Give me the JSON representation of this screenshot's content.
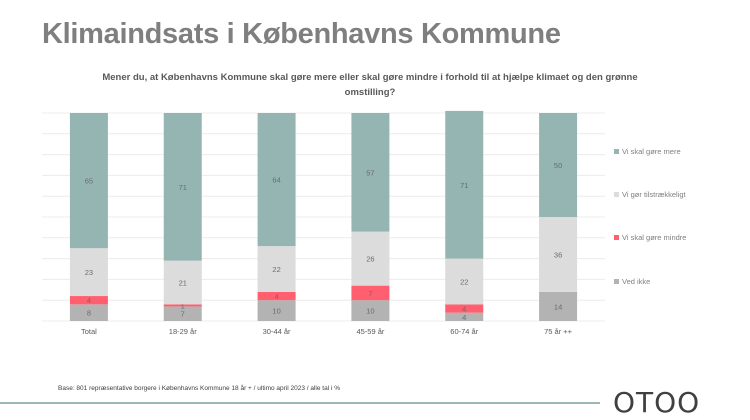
{
  "title": "Klimaindsats i Københavns Kommune",
  "question": "Mener du, at Københavns Kommune skal gøre mere eller skal gøre mindre i forhold til at hjælpe klimaet og den grønne omstilling?",
  "footnote": "Base: 801 repræsentative borgere i Københavns Kommune 18 år + / ultimo april 2023 / alle tal i %",
  "logo": "OTOO",
  "chart_data": {
    "type": "bar",
    "stacked": true,
    "orientation": "vertical",
    "categories": [
      "Total",
      "18-29 år",
      "30-44 år",
      "45-59 år",
      "60-74 år",
      "75 år ++"
    ],
    "ylim": [
      0,
      100
    ],
    "grid": true,
    "legend_position": "right",
    "series": [
      {
        "name": "Ved ikke",
        "color": "#b3b3b3",
        "values": [
          8,
          7,
          10,
          10,
          4,
          14
        ]
      },
      {
        "name": "Vi skal gøre mindre",
        "color": "#ff5f6f",
        "values": [
          4,
          1,
          4,
          7,
          4,
          0
        ]
      },
      {
        "name": "Vi gør tilstrækkeligt",
        "color": "#dcdcdc",
        "values": [
          23,
          21,
          22,
          26,
          22,
          36
        ]
      },
      {
        "name": "Vi skal gøre mere",
        "color": "#95b5b2",
        "values": [
          65,
          71,
          64,
          57,
          71,
          50
        ]
      }
    ],
    "legend_order": [
      "Vi skal gøre mere",
      "Vi gør tilstrækkeligt",
      "Vi skal gøre mindre",
      "Ved ikke"
    ]
  }
}
